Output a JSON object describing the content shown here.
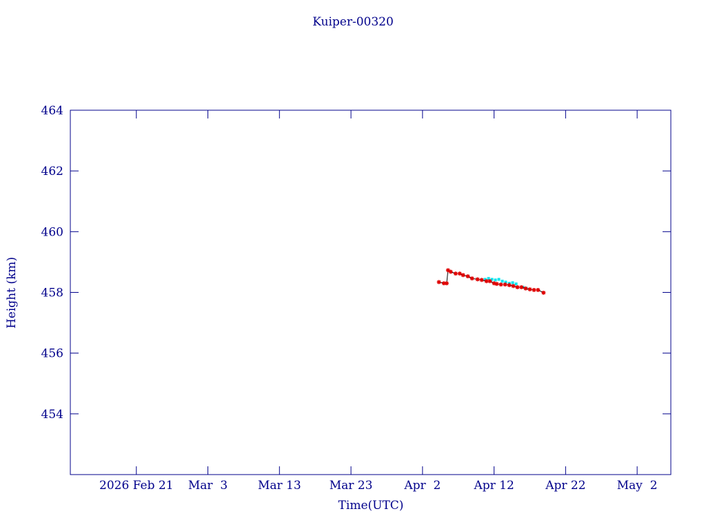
{
  "chart_data": {
    "type": "line",
    "title": "Kuiper-00320",
    "xlabel": "Time(UTC)",
    "ylabel": "Height (km)",
    "axis_color": "#00008b",
    "xlim": [
      "2026-02-11T18:30",
      "2026-05-06T17:00"
    ],
    "xticks": [
      {
        "value": "2026-02-21T00:00",
        "label": "2026 Feb 21"
      },
      {
        "value": "2026-03-03T00:00",
        "label": "Mar  3"
      },
      {
        "value": "2026-03-13T00:00",
        "label": "Mar 13"
      },
      {
        "value": "2026-03-23T00:00",
        "label": "Mar 23"
      },
      {
        "value": "2026-04-02T00:00",
        "label": "Apr  2"
      },
      {
        "value": "2026-04-12T00:00",
        "label": "Apr 12"
      },
      {
        "value": "2026-04-22T00:00",
        "label": "Apr 22"
      },
      {
        "value": "2026-05-02T00:00",
        "label": "May  2"
      }
    ],
    "ylim": [
      452,
      464
    ],
    "yticks": [
      454,
      456,
      458,
      460,
      462,
      464
    ],
    "series": [
      {
        "color": "#00e5ee",
        "marker": "square",
        "line": false,
        "x": [
          "2026-04-10T18:00",
          "2026-04-11T05:30",
          "2026-04-11T17:00",
          "2026-04-12T04:30",
          "2026-04-12T16:00",
          "2026-04-13T03:40",
          "2026-04-13T15:00",
          "2026-04-14T03:00",
          "2026-04-14T14:20",
          "2026-04-15T02:00",
          "2026-04-16T01:00",
          "2026-04-16T12:30"
        ],
        "values": [
          458.43,
          458.46,
          458.43,
          458.41,
          458.43,
          458.37,
          458.34,
          458.3,
          458.32,
          458.28,
          458.17,
          458.13
        ]
      },
      {
        "color": "#e00000",
        "marker": "star",
        "line": true,
        "x": [
          "2026-04-04T07:00",
          "2026-04-04T23:30",
          "2026-04-05T09:00",
          "2026-04-05T13:30",
          "2026-04-05T22:30",
          "2026-04-06T15:00",
          "2026-04-07T04:40",
          "2026-04-07T16:00",
          "2026-04-08T08:00",
          "2026-04-08T22:00",
          "2026-04-09T16:30",
          "2026-04-10T06:30",
          "2026-04-10T22:30",
          "2026-04-11T10:00",
          "2026-04-12T00:00",
          "2026-04-12T09:00",
          "2026-04-12T23:00",
          "2026-04-13T13:00",
          "2026-04-14T03:00",
          "2026-04-14T16:30",
          "2026-04-15T06:30",
          "2026-04-15T20:00",
          "2026-04-16T10:00",
          "2026-04-17T00:00",
          "2026-04-17T14:00",
          "2026-04-18T03:30",
          "2026-04-18T22:00"
        ],
        "values": [
          458.34,
          458.3,
          458.3,
          458.73,
          458.68,
          458.62,
          458.62,
          458.57,
          458.53,
          458.46,
          458.43,
          458.41,
          458.37,
          458.37,
          458.3,
          458.28,
          458.26,
          458.26,
          458.24,
          458.21,
          458.17,
          458.17,
          458.13,
          458.1,
          458.08,
          458.08,
          457.99
        ]
      }
    ]
  }
}
